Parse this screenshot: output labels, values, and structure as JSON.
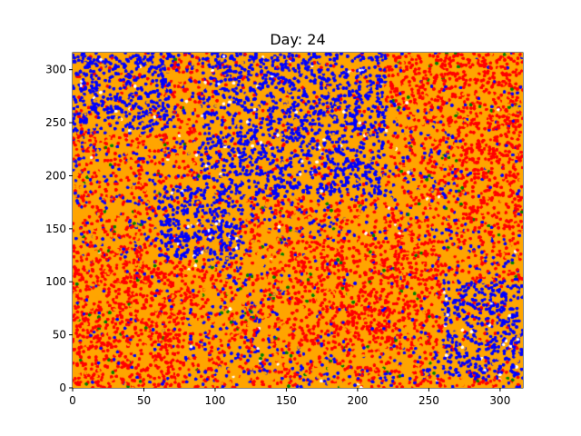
{
  "chart_data": {
    "type": "scatter",
    "title": "Day: 24",
    "xlabel": "",
    "ylabel": "",
    "xlim": [
      0,
      316
    ],
    "ylim": [
      0,
      316
    ],
    "x_ticks": [
      0,
      50,
      100,
      150,
      200,
      250,
      300
    ],
    "y_ticks": [
      0,
      50,
      100,
      150,
      200,
      250,
      300
    ],
    "grid": false,
    "legend": "none",
    "background_color": "#ffffff",
    "series_colors": [
      "#0000ff",
      "#ffa500",
      "#ff0000",
      "#008000",
      "#ffffff"
    ],
    "description_note_free": true,
    "regions": [
      {
        "color": "#0000ff",
        "x_range": [
          0,
          70
        ],
        "y_range": [
          240,
          316
        ]
      },
      {
        "color": "#0000ff",
        "x_range": [
          90,
          220
        ],
        "y_range": [
          180,
          316
        ]
      },
      {
        "color": "#0000ff",
        "x_range": [
          260,
          316
        ],
        "y_range": [
          10,
          100
        ]
      },
      {
        "color": "#0000ff",
        "x_range": [
          60,
          120
        ],
        "y_range": [
          120,
          190
        ]
      },
      {
        "color": "#ff0000",
        "x_range": [
          0,
          80
        ],
        "y_range": [
          0,
          120
        ]
      },
      {
        "color": "#ff0000",
        "x_range": [
          270,
          316
        ],
        "y_range": [
          150,
          260
        ]
      },
      {
        "color": "#ff0000",
        "x_range": [
          150,
          260
        ],
        "y_range": [
          40,
          140
        ]
      },
      {
        "color": "#ff0000",
        "x_range": [
          220,
          316
        ],
        "y_range": [
          270,
          316
        ]
      }
    ]
  }
}
